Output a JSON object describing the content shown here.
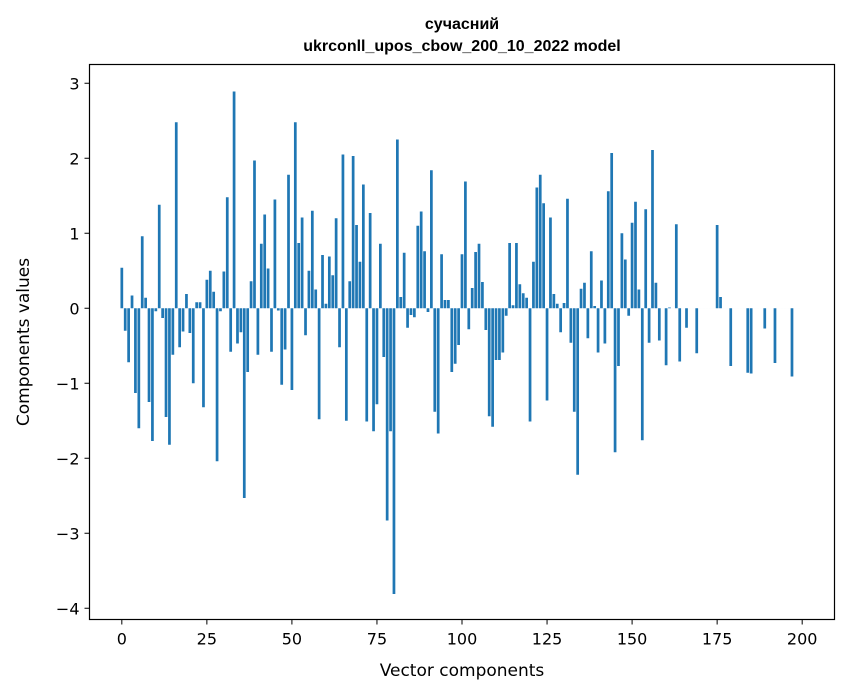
{
  "chart_data": {
    "type": "bar",
    "title": "сучасний",
    "subtitle": "ukrconll_upos_cbow_200_10_2022 model",
    "xlabel": "Vector components",
    "ylabel": "Components values",
    "xlim": [
      -9.5,
      209.5
    ],
    "ylim": [
      -4.15,
      3.25
    ],
    "xticks": [
      0,
      25,
      50,
      75,
      100,
      125,
      150,
      175,
      200
    ],
    "yticks": [
      -4,
      -3,
      -2,
      -1,
      0,
      1,
      2,
      3
    ],
    "ytick_labels": [
      "−4",
      "−3",
      "−2",
      "−1",
      "0",
      "1",
      "2",
      "3"
    ],
    "grid": false,
    "bar_color": "#1f77b4",
    "x": [
      0,
      1,
      2,
      3,
      4,
      5,
      6,
      7,
      8,
      9,
      10,
      11,
      12,
      13,
      14,
      15,
      16,
      17,
      18,
      19,
      20,
      21,
      22,
      23,
      24,
      25,
      26,
      27,
      28,
      29,
      30,
      31,
      32,
      33,
      34,
      35,
      36,
      37,
      38,
      39,
      40,
      41,
      42,
      43,
      44,
      45,
      46,
      47,
      48,
      49,
      50,
      51,
      52,
      53,
      54,
      55,
      56,
      57,
      58,
      59,
      60,
      61,
      62,
      63,
      64,
      65,
      66,
      67,
      68,
      69,
      70,
      71,
      72,
      73,
      74,
      75,
      76,
      77,
      78,
      79,
      80,
      81,
      82,
      83,
      84,
      85,
      86,
      87,
      88,
      89,
      90,
      91,
      92,
      93,
      94,
      95,
      96,
      97,
      98,
      99,
      100,
      101,
      102,
      103,
      104,
      105,
      106,
      107,
      108,
      109,
      110,
      111,
      112,
      113,
      114,
      115,
      116,
      117,
      118,
      119,
      120,
      121,
      122,
      123,
      124,
      125,
      126,
      127,
      128,
      129,
      130,
      131,
      132,
      133,
      134,
      135,
      136,
      137,
      138,
      139,
      140,
      141,
      142,
      143,
      144,
      145,
      146,
      147,
      148,
      149,
      150,
      151,
      152,
      153,
      154,
      155,
      156,
      157,
      158,
      159,
      160,
      161,
      162,
      163,
      164,
      165,
      166,
      167,
      168,
      169,
      170,
      171,
      172,
      173,
      174,
      175,
      176,
      177,
      178,
      179,
      180,
      181,
      182,
      183,
      184,
      185,
      186,
      187,
      188,
      189,
      190,
      191,
      192,
      193,
      194,
      195,
      196,
      197,
      198,
      199
    ],
    "values": [
      0.54,
      -0.3,
      -0.72,
      0.17,
      -1.13,
      -1.6,
      0.96,
      0.14,
      -1.25,
      -1.77,
      -0.04,
      1.38,
      -0.13,
      -1.45,
      -1.82,
      -0.62,
      2.48,
      -0.52,
      -0.31,
      0.19,
      -0.33,
      -1.0,
      0.08,
      0.08,
      -1.32,
      0.38,
      0.5,
      0.22,
      -2.04,
      -0.04,
      0.49,
      1.48,
      -0.58,
      2.89,
      -0.47,
      -0.32,
      -2.53,
      -0.85,
      0.36,
      1.97,
      -0.62,
      0.86,
      1.25,
      0.53,
      -0.58,
      1.45,
      -0.03,
      -1.02,
      -0.55,
      1.78,
      -1.09,
      2.48,
      0.87,
      1.21,
      -0.36,
      0.5,
      1.3,
      0.25,
      -1.48,
      0.71,
      0.06,
      0.69,
      0.44,
      1.2,
      -0.52,
      2.05,
      -1.5,
      0.36,
      2.03,
      1.11,
      0.62,
      1.65,
      -1.51,
      1.27,
      -1.64,
      -1.28,
      0.86,
      -0.65,
      -2.83,
      -1.64,
      -3.81,
      2.25,
      0.15,
      0.74,
      -0.26,
      -0.09,
      -0.12,
      1.1,
      1.29,
      0.76,
      -0.05,
      1.84,
      -1.38,
      -1.67,
      0.72,
      0.11,
      0.11,
      -0.85,
      -0.74,
      -0.49,
      0.72,
      1.69,
      -0.28,
      0.27,
      0.75,
      0.86,
      0.35,
      -0.29,
      -1.44,
      -1.58,
      -0.69,
      -0.69,
      -0.59,
      -0.1,
      0.87,
      0.04,
      0.87,
      0.32,
      0.2,
      0.14,
      -1.51,
      0.62,
      1.61,
      1.78,
      1.4,
      -1.23,
      1.21,
      0.19,
      0.06,
      -0.32,
      0.07,
      1.46,
      -0.46,
      -1.38,
      -2.22,
      0.26,
      0.34,
      -0.4,
      0.76,
      0.03,
      -0.59,
      0.37,
      -0.47,
      1.56,
      2.07,
      -1.92,
      -0.77,
      1.0,
      0.65,
      -0.1,
      1.14,
      1.42,
      0.25,
      -1.76,
      1.32,
      -0.46,
      2.11,
      0.34,
      -0.43,
      0.0,
      -0.76,
      0.01,
      0.0,
      1.12,
      -0.71,
      0.0,
      -0.26,
      0.0,
      0.0,
      -0.6,
      0.0,
      0.0,
      0.0,
      0.0,
      0.0,
      1.11,
      0.15,
      0.0,
      0.0,
      -0.77,
      0.0,
      0.0,
      0.0,
      0.0,
      -0.86,
      -0.87,
      0.0,
      0.0,
      0.0,
      -0.27,
      0.0,
      0.0,
      -0.73,
      0.0,
      0.0,
      0.0,
      0.0,
      -0.91,
      0.0,
      0.0
    ]
  }
}
